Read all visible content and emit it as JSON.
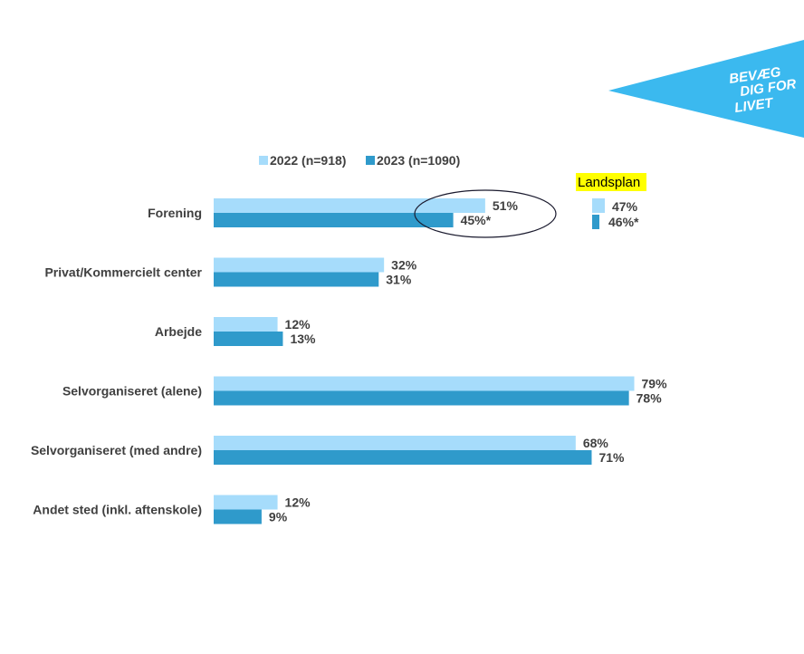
{
  "brand": {
    "logo_lines": [
      "BEVÆG",
      "DIG FOR",
      "LIVET"
    ],
    "logo_color": "#3bb9ef"
  },
  "colors": {
    "series_2022": "#a6dcfb",
    "series_2023": "#2f9acb",
    "text": "#404040",
    "highlight": "#ffff00"
  },
  "landsplan": {
    "title": "Landsplan",
    "values": [
      "47%",
      "46%*"
    ]
  },
  "chart_data": {
    "type": "bar",
    "orientation": "horizontal",
    "categories": [
      "Forening",
      "Privat/Kommercielt center",
      "Arbejde",
      "Selvorganiseret (alene)",
      "Selvorganiseret (med andre)",
      "Andet sted (inkl. aftenskole)"
    ],
    "series": [
      {
        "name": "2022 (n=918)",
        "values": [
          51,
          32,
          12,
          79,
          68,
          12
        ],
        "labels": [
          "51%",
          "32%",
          "12%",
          "79%",
          "68%",
          "12%"
        ]
      },
      {
        "name": "2023 (n=1090)",
        "values": [
          45,
          31,
          13,
          78,
          71,
          9
        ],
        "labels": [
          "45%*",
          "31%",
          "13%",
          "78%",
          "71%",
          "9%"
        ]
      }
    ],
    "xlim": [
      0,
      100
    ],
    "grid": false,
    "legend_position": "top"
  }
}
